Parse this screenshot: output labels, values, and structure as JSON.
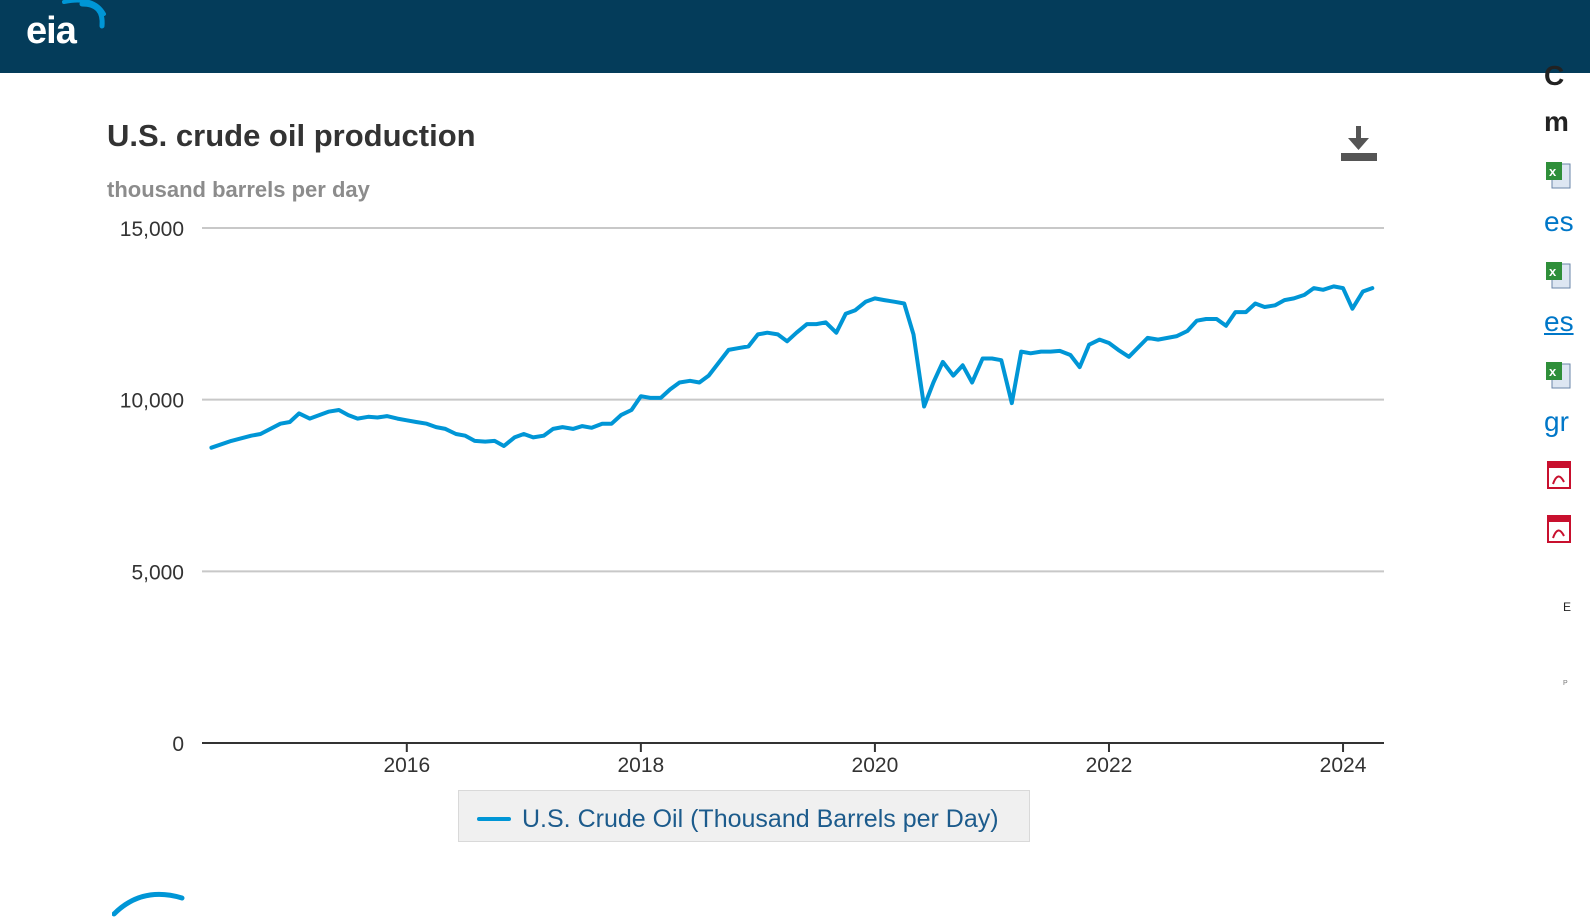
{
  "header": {
    "logo_text": "eia",
    "background": "#043c5a"
  },
  "chart_header": {
    "title": "U.S. crude oil production",
    "subtitle": "thousand barrels per day",
    "download_icon": "download-icon"
  },
  "legend": {
    "label": "U.S. Crude Oil (Thousand Barrels per Day)"
  },
  "sidebar": {
    "heading_line1": "C",
    "heading_line2": "m",
    "links": [
      {
        "icon": "excel-file-icon",
        "text": "es"
      },
      {
        "icon": "excel-file-icon",
        "text": "es"
      },
      {
        "icon": "excel-file-icon",
        "text": "gr"
      },
      {
        "icon": "pdf-file-icon",
        "text": ""
      },
      {
        "icon": "pdf-file-icon",
        "text": ""
      }
    ],
    "tiny_text_1": "E",
    "tiny_text_2": "P"
  },
  "chart_data": {
    "type": "line",
    "title": "U.S. crude oil production",
    "ylabel": "thousand barrels per day",
    "xlabel": "",
    "ylim": [
      0,
      15000
    ],
    "xlim": [
      2014.25,
      2024.35
    ],
    "y_ticks": [
      {
        "value": 0,
        "label": "0"
      },
      {
        "value": 5000,
        "label": "5,000"
      },
      {
        "value": 10000,
        "label": "10,000"
      },
      {
        "value": 15000,
        "label": "15,000"
      }
    ],
    "x_ticks": [
      {
        "value": 2016,
        "label": "2016"
      },
      {
        "value": 2018,
        "label": "2018"
      },
      {
        "value": 2020,
        "label": "2020"
      },
      {
        "value": 2022,
        "label": "2022"
      },
      {
        "value": 2024,
        "label": "2024"
      }
    ],
    "grid": true,
    "legend_position": "bottom-center",
    "series": [
      {
        "name": "U.S. Crude Oil (Thousand Barrels per Day)",
        "color": "#0096d6",
        "x": [
          2014.33,
          2014.5,
          2014.67,
          2014.75,
          2014.92,
          2015.0,
          2015.08,
          2015.17,
          2015.33,
          2015.42,
          2015.5,
          2015.58,
          2015.67,
          2015.75,
          2015.83,
          2015.92,
          2016.0,
          2016.08,
          2016.17,
          2016.25,
          2016.33,
          2016.42,
          2016.5,
          2016.58,
          2016.67,
          2016.75,
          2016.83,
          2016.92,
          2017.0,
          2017.08,
          2017.17,
          2017.25,
          2017.33,
          2017.42,
          2017.5,
          2017.58,
          2017.67,
          2017.75,
          2017.83,
          2017.92,
          2018.0,
          2018.08,
          2018.17,
          2018.25,
          2018.33,
          2018.42,
          2018.5,
          2018.58,
          2018.75,
          2018.83,
          2018.92,
          2019.0,
          2019.08,
          2019.17,
          2019.25,
          2019.33,
          2019.42,
          2019.5,
          2019.58,
          2019.67,
          2019.75,
          2019.83,
          2019.92,
          2020.0,
          2020.08,
          2020.17,
          2020.25,
          2020.33,
          2020.42,
          2020.5,
          2020.58,
          2020.67,
          2020.75,
          2020.83,
          2020.92,
          2021.0,
          2021.08,
          2021.17,
          2021.25,
          2021.33,
          2021.42,
          2021.5,
          2021.58,
          2021.67,
          2021.75,
          2021.83,
          2021.92,
          2022.0,
          2022.08,
          2022.17,
          2022.33,
          2022.42,
          2022.5,
          2022.58,
          2022.67,
          2022.75,
          2022.83,
          2022.92,
          2023.0,
          2023.08,
          2023.17,
          2023.25,
          2023.33,
          2023.42,
          2023.5,
          2023.58,
          2023.67,
          2023.75,
          2023.83,
          2023.92,
          2024.0,
          2024.08,
          2024.17,
          2024.25
        ],
        "values": [
          8600,
          8800,
          8950,
          9000,
          9300,
          9350,
          9600,
          9450,
          9650,
          9700,
          9550,
          9450,
          9500,
          9480,
          9520,
          9450,
          9400,
          9350,
          9300,
          9200,
          9150,
          9000,
          8950,
          8800,
          8780,
          8800,
          8650,
          8900,
          9000,
          8900,
          8950,
          9150,
          9200,
          9150,
          9230,
          9180,
          9300,
          9300,
          9550,
          9700,
          10100,
          10050,
          10050,
          10300,
          10500,
          10550,
          10500,
          10700,
          11450,
          11500,
          11550,
          11900,
          11950,
          11900,
          11700,
          11950,
          12200,
          12200,
          12250,
          11950,
          12500,
          12600,
          12850,
          12950,
          12900,
          12850,
          12800,
          11900,
          9800,
          10500,
          11100,
          10700,
          11000,
          10500,
          11200,
          11200,
          11150,
          9900,
          11400,
          11350,
          11400,
          11400,
          11420,
          11300,
          10950,
          11600,
          11750,
          11650,
          11450,
          11250,
          11800,
          11750,
          11800,
          11850,
          12000,
          12300,
          12350,
          12350,
          12150,
          12550,
          12550,
          12800,
          12700,
          12750,
          12900,
          12950,
          13050,
          13250,
          13200,
          13300,
          13250,
          12650,
          13150,
          13250
        ]
      }
    ]
  }
}
